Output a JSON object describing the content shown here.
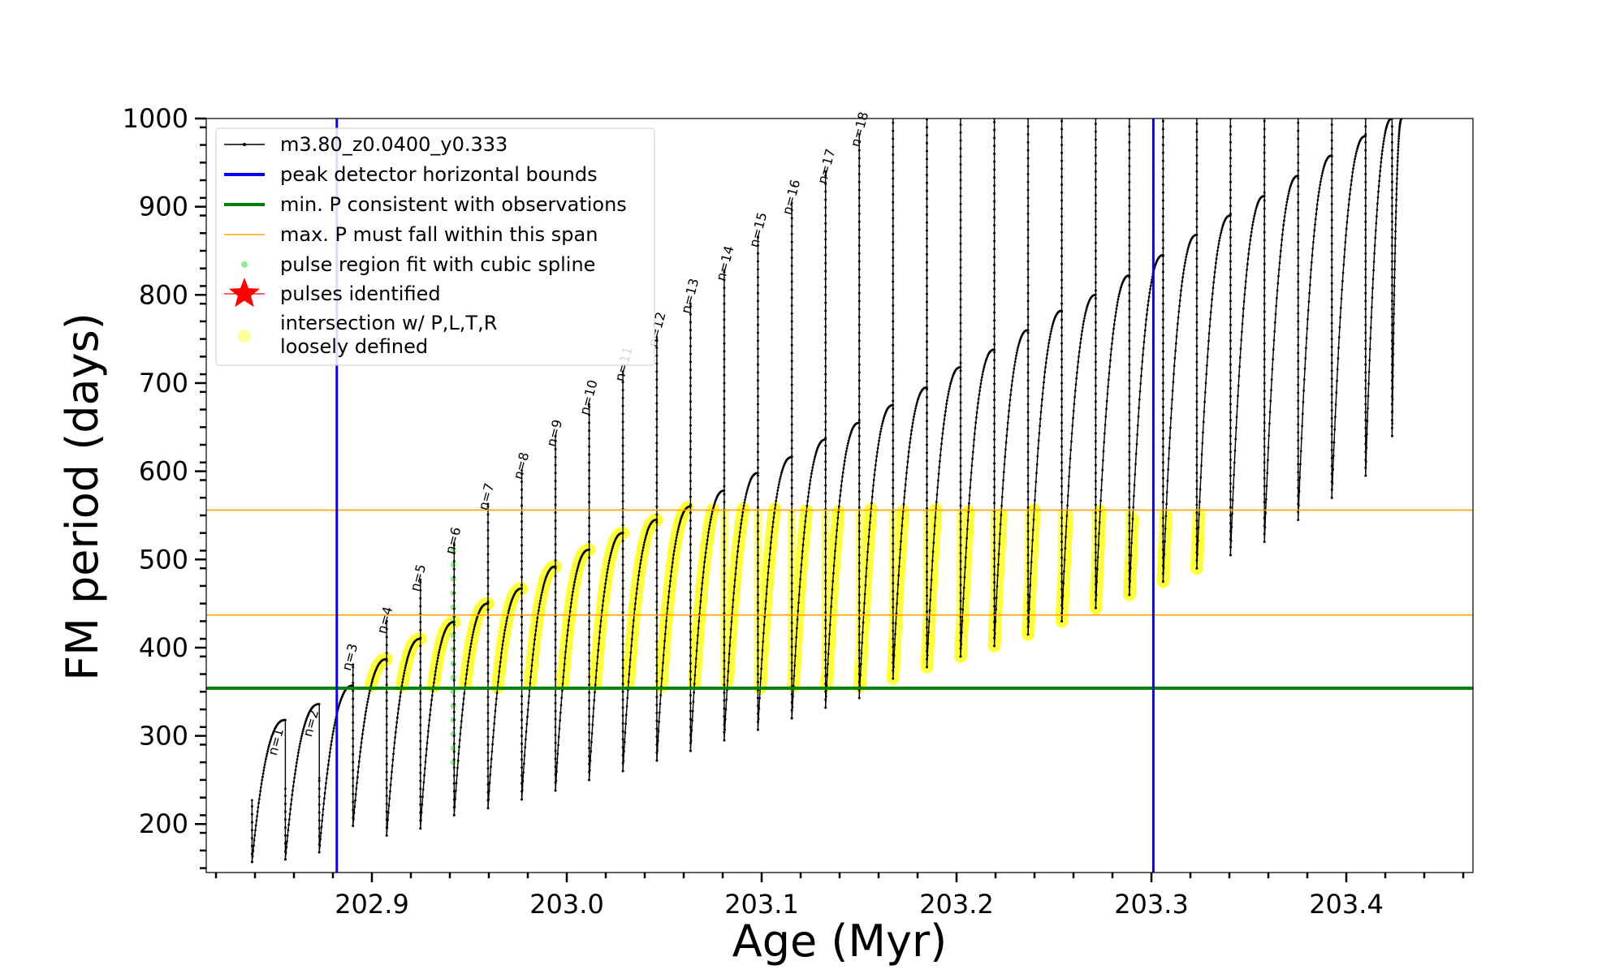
{
  "chart_data": {
    "type": "line",
    "title": "",
    "xlabel": "Age (Myr)",
    "ylabel": "FM period (days)",
    "xlim": [
      202.815,
      203.465
    ],
    "ylim": [
      145,
      1000
    ],
    "xticks": [
      202.9,
      203.0,
      203.1,
      203.2,
      203.3,
      203.4
    ],
    "xtick_labels": [
      "202.9",
      "203.0",
      "203.1",
      "203.2",
      "203.3",
      "203.4"
    ],
    "yticks": [
      200,
      300,
      400,
      500,
      600,
      700,
      800,
      900,
      1000
    ],
    "ytick_labels": [
      "200",
      "300",
      "400",
      "500",
      "600",
      "700",
      "800",
      "900",
      "1000"
    ],
    "grid": false,
    "legend_position": "top-left",
    "legend": [
      {
        "label": "m3.80_z0.0400_y0.333",
        "kind": "line-marker",
        "color": "#000000"
      },
      {
        "label": "peak detector horizontal bounds",
        "kind": "line",
        "color": "#0000ff"
      },
      {
        "label": "min. P consistent with observations",
        "kind": "line",
        "color": "#008000"
      },
      {
        "label": "max. P must fall within this span",
        "kind": "thin-line",
        "color": "#ffa500"
      },
      {
        "label": "pulse region fit with cubic spline",
        "kind": "dot",
        "color": "#90ee90"
      },
      {
        "label": "pulses identified",
        "kind": "star",
        "color": "#ff0000"
      },
      {
        "label": "intersection w/ P,L,T,R",
        "label2": "loosely defined",
        "kind": "circle",
        "color": "#ffff99"
      }
    ],
    "vertical_bounds": [
      202.882,
      203.301
    ],
    "min_period": 354,
    "max_period_span": [
      437,
      556
    ],
    "pulse_labels": [
      {
        "label": "n=1",
        "x": 202.851,
        "y": 277
      },
      {
        "label": "n=2",
        "x": 202.869,
        "y": 298
      },
      {
        "label": "n=3",
        "x": 202.889,
        "y": 373
      },
      {
        "label": "n=4",
        "x": 202.907,
        "y": 415
      },
      {
        "label": "n=5",
        "x": 202.924,
        "y": 463
      },
      {
        "label": "n=6",
        "x": 202.942,
        "y": 505
      },
      {
        "label": "n=7",
        "x": 202.959,
        "y": 555
      },
      {
        "label": "n=8",
        "x": 202.977,
        "y": 590
      },
      {
        "label": "n=9",
        "x": 202.994,
        "y": 627
      },
      {
        "label": "n=10",
        "x": 203.011,
        "y": 663
      },
      {
        "label": "n=11",
        "x": 203.029,
        "y": 701
      },
      {
        "label": "n=12",
        "x": 203.046,
        "y": 740
      },
      {
        "label": "n=13",
        "x": 203.063,
        "y": 778
      },
      {
        "label": "n=14",
        "x": 203.081,
        "y": 815
      },
      {
        "label": "n=15",
        "x": 203.098,
        "y": 853
      },
      {
        "label": "n=16",
        "x": 203.115,
        "y": 890
      },
      {
        "label": "n=17",
        "x": 203.133,
        "y": 925
      },
      {
        "label": "n=18",
        "x": 203.15,
        "y": 967
      }
    ],
    "track": {
      "name": "m3.80_z0.0400_y0.333",
      "start_age": 202.8385,
      "end_age": 203.4235,
      "spike_ages": [
        202.8385,
        202.8556,
        202.873,
        202.8903,
        202.9076,
        202.9249,
        202.9422,
        202.9596,
        202.9769,
        202.9942,
        203.0115,
        203.0288,
        203.0462,
        203.0635,
        203.0808,
        203.0981,
        203.1155,
        203.1328,
        203.1501,
        203.1674,
        203.1848,
        203.2021,
        203.2194,
        203.2367,
        203.254,
        203.2714,
        203.2887,
        203.306,
        203.3233,
        203.3406,
        203.358,
        203.3753,
        203.3926,
        203.4099,
        203.4235
      ],
      "spike_tops": [
        227,
        240,
        252,
        381,
        430,
        477,
        518,
        563,
        601,
        640,
        676,
        713,
        752,
        790,
        828,
        866,
        904,
        940,
        982,
        1000,
        1000,
        1000,
        1000,
        1000,
        1000,
        1000,
        1000,
        1000,
        1000,
        1000,
        1000,
        1000,
        1000,
        1000,
        1000
      ],
      "spike_bottoms": [
        157,
        160,
        168,
        198,
        187,
        195,
        210,
        218,
        228,
        238,
        250,
        260,
        272,
        283,
        295,
        307,
        320,
        332,
        343,
        365,
        378,
        390,
        402,
        415,
        430,
        445,
        460,
        475,
        490,
        505,
        520,
        545,
        570,
        595,
        640
      ],
      "plateaus": [
        318,
        336,
        357,
        387,
        410,
        429,
        450,
        467,
        492,
        511,
        530,
        545,
        560,
        578,
        598,
        616,
        636,
        655,
        675,
        695,
        718,
        738,
        760,
        782,
        800,
        822,
        845,
        868,
        890,
        912,
        935,
        958,
        980,
        1000,
        1000
      ]
    }
  }
}
